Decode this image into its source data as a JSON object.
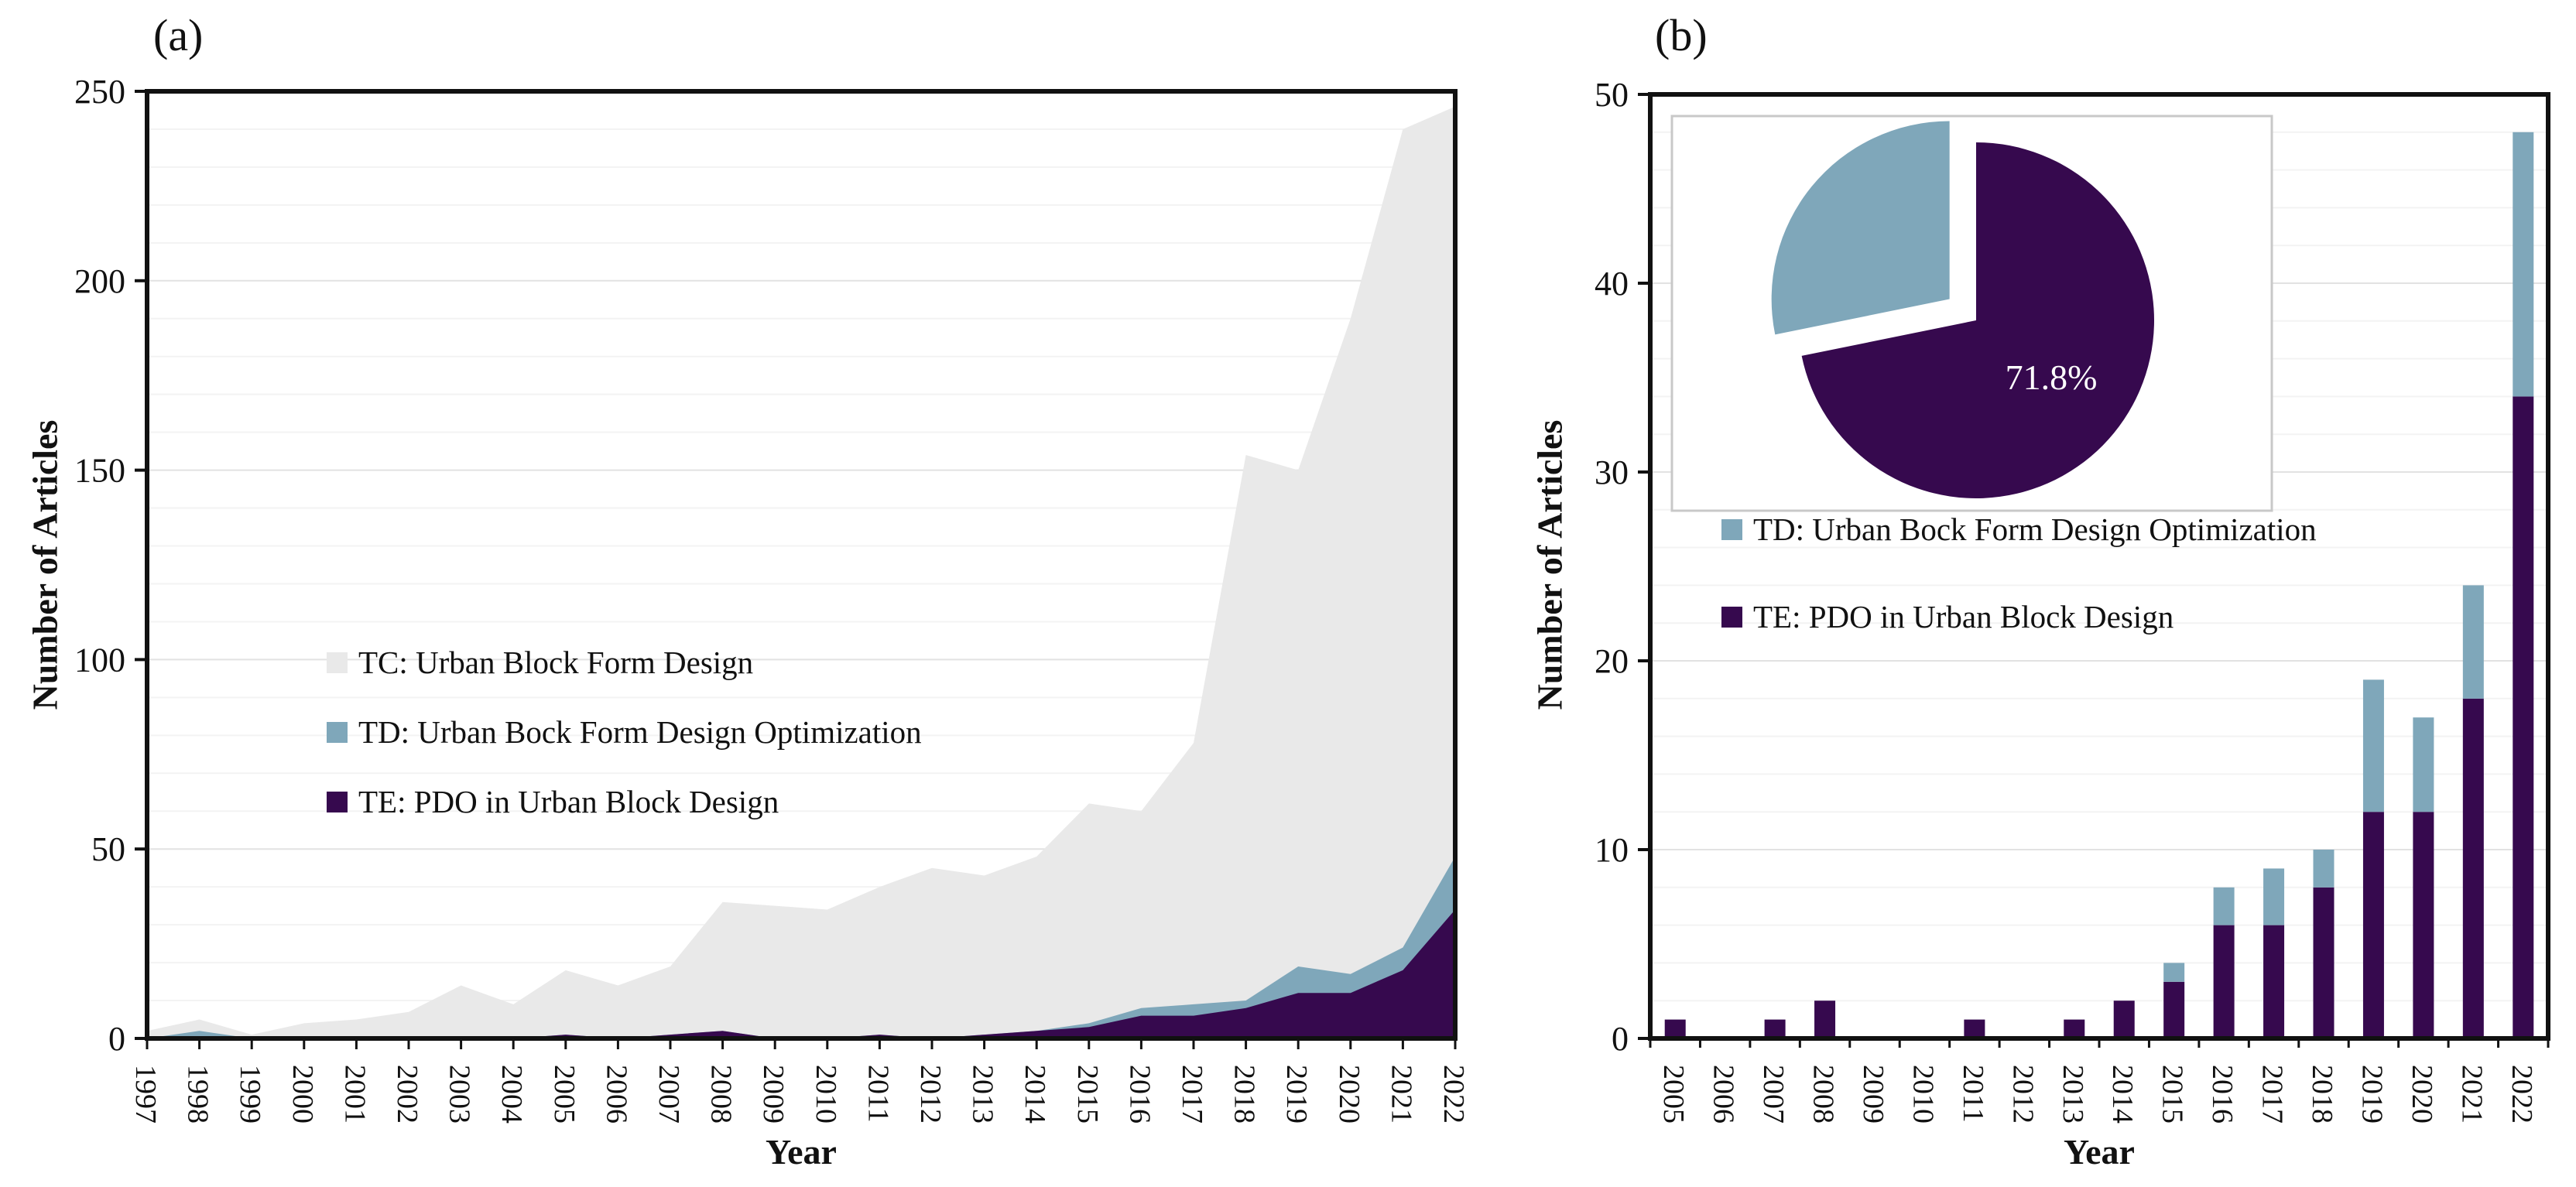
{
  "figure": {
    "background": "#ffffff",
    "colors": {
      "axis": "#111111",
      "grid_minor": "#f3f3f3",
      "grid_major": "#e2e2e2",
      "inset_border": "#c8c8c8",
      "pie_label_text": "#ffffff"
    },
    "panel_a": {
      "label": "(a)",
      "xlabel": "Year",
      "ylabel": "Number of Articles"
    },
    "panel_b": {
      "label": "(b)",
      "xlabel": "Year",
      "ylabel": "Number of Articles"
    }
  },
  "chart_data": [
    {
      "id": "panel-a",
      "type": "area",
      "title": "(a)",
      "xlabel": "Year",
      "ylabel": "Number of Articles",
      "ylim": [
        0,
        250
      ],
      "ytick": 50,
      "yminor": 10,
      "grid": true,
      "legend_position": "inside-left",
      "x": [
        1997,
        1998,
        1999,
        2000,
        2001,
        2002,
        2003,
        2004,
        2005,
        2006,
        2007,
        2008,
        2009,
        2010,
        2011,
        2012,
        2013,
        2014,
        2015,
        2016,
        2017,
        2018,
        2019,
        2020,
        2021,
        2022
      ],
      "series": [
        {
          "name": "TC: Urban Block Form Design",
          "color": "#e9e9e9",
          "stacking": "none",
          "values": [
            2,
            5,
            1,
            4,
            5,
            7,
            14,
            9,
            18,
            14,
            19,
            36,
            35,
            34,
            40,
            45,
            43,
            48,
            62,
            60,
            78,
            154,
            150,
            190,
            240,
            246
          ]
        },
        {
          "name": "TD: Urban Bock Form Design Optimization",
          "color": "#7fa7ba",
          "stacking": "stacked-on-TE",
          "values": [
            0,
            2,
            0,
            0,
            0,
            0,
            0,
            0,
            0,
            0,
            0,
            0,
            0,
            0,
            0,
            0,
            0,
            0,
            1,
            2,
            3,
            2,
            7,
            5,
            6,
            14
          ]
        },
        {
          "name": "TE: PDO in Urban Block Design",
          "color": "#36094e",
          "stacking": "base",
          "values": [
            0,
            0,
            0,
            0,
            0,
            0,
            0,
            0,
            1,
            0,
            1,
            2,
            0,
            0,
            1,
            0,
            1,
            2,
            3,
            6,
            6,
            8,
            12,
            12,
            18,
            34
          ]
        }
      ]
    },
    {
      "id": "panel-b",
      "type": "bar",
      "bar_style": "stacked",
      "title": "(b)",
      "xlabel": "Year",
      "ylabel": "Number of Articles",
      "ylim": [
        0,
        50
      ],
      "ytick": 10,
      "yminor": 2,
      "grid": true,
      "legend_position": "inside-left",
      "categories": [
        2005,
        2006,
        2007,
        2008,
        2009,
        2010,
        2011,
        2012,
        2013,
        2014,
        2015,
        2016,
        2017,
        2018,
        2019,
        2020,
        2021,
        2022
      ],
      "series": [
        {
          "name": "TD: Urban Bock Form Design Optimization",
          "color": "#7fa7ba",
          "values": [
            0,
            0,
            0,
            0,
            0,
            0,
            0,
            0,
            0,
            0,
            1,
            2,
            3,
            2,
            7,
            5,
            6,
            14
          ]
        },
        {
          "name": "TE: PDO in Urban Block Design",
          "color": "#36094e",
          "values": [
            1,
            0,
            1,
            2,
            0,
            0,
            1,
            0,
            1,
            2,
            3,
            6,
            6,
            8,
            12,
            12,
            18,
            34
          ]
        }
      ],
      "inset_pie": {
        "type": "pie",
        "label": "71.8%",
        "slices": [
          {
            "name": "TE: PDO in Urban Block Design",
            "pct": 71.8,
            "color": "#36094e",
            "exploded": false
          },
          {
            "name": "TD: Urban Bock Form Design Optimization",
            "pct": 28.2,
            "color": "#7fa7ba",
            "exploded": true
          }
        ]
      }
    }
  ]
}
